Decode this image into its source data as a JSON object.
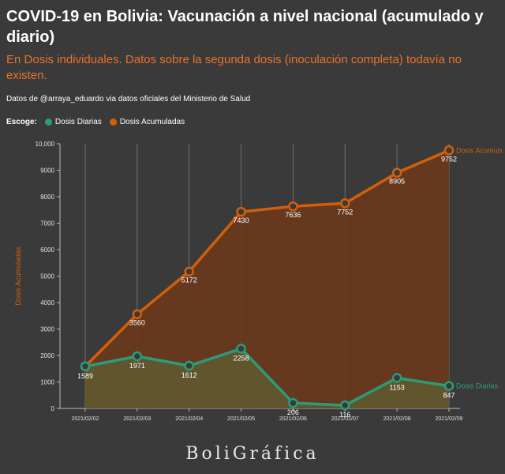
{
  "header": {
    "title": "COVID-19 en Bolivia: Vacunación a nivel nacional (acumulado y diario)",
    "subtitle": "En Dosis individuales. Datos sobre la segunda dosis (inoculación completa) todavía no existen.",
    "source": "Datos de @arraya_eduardo via datos oficiales del Ministerio de Salud"
  },
  "legend": {
    "label": "Escoge:",
    "items": [
      {
        "label": "Dosis Diarias",
        "color": "#2a9d78"
      },
      {
        "label": "Dosis Acumuladas",
        "color": "#d35f0a"
      }
    ]
  },
  "brand": "BoliGráfica",
  "chart_data": {
    "type": "area",
    "categories": [
      "2021/02/02",
      "2021/02/03",
      "2021/02/04",
      "2021/02/05",
      "2021/02/06",
      "2021/02/07",
      "2021/02/08",
      "2021/02/09"
    ],
    "ylabel": "Dosis Acumuladas",
    "ylim": [
      0,
      10000
    ],
    "yticks": [
      "0",
      "1000",
      "2000",
      "3000",
      "4000",
      "5000",
      "6000",
      "7000",
      "8000",
      "9000",
      "10,000"
    ],
    "series": [
      {
        "name": "Dosis Acumuls",
        "values": [
          1589,
          3560,
          5172,
          7430,
          7636,
          7752,
          8905,
          9752
        ],
        "color": "#d35f0a",
        "fill": "#6b3a1d"
      },
      {
        "name": "Dosis Diarias",
        "values": [
          1589,
          1971,
          1612,
          2258,
          206,
          116,
          1153,
          847
        ],
        "color": "#2a9d78",
        "fill": "#5f5a2f"
      }
    ],
    "data_labels": {
      "acum": [
        "",
        "3560",
        "5172",
        "7430",
        "7636",
        "7752",
        "8905",
        "9752"
      ],
      "diarias": [
        "1589",
        "1971",
        "1612",
        "2258",
        "206",
        "116",
        "1153",
        "847"
      ]
    },
    "grid": true
  }
}
